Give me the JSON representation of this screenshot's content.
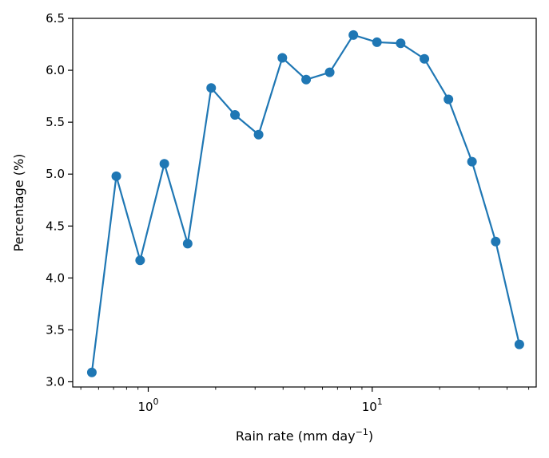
{
  "chart_data": {
    "type": "line",
    "xscale": "log",
    "xlabel": {
      "base": "Rain rate (mm day",
      "sup": "−1",
      "close": ")"
    },
    "ylabel": "Percentage (%)",
    "xlim": [
      0.46,
      54
    ],
    "ylim": [
      2.95,
      6.5
    ],
    "x_major_ticks": [
      {
        "value": 1,
        "base": "10",
        "exp": "0"
      },
      {
        "value": 10,
        "base": "10",
        "exp": "1"
      }
    ],
    "y_ticks": [
      {
        "value": 3.0,
        "label": "3.0"
      },
      {
        "value": 3.5,
        "label": "3.5"
      },
      {
        "value": 4.0,
        "label": "4.0"
      },
      {
        "value": 4.5,
        "label": "4.5"
      },
      {
        "value": 5.0,
        "label": "5.0"
      },
      {
        "value": 5.5,
        "label": "5.5"
      },
      {
        "value": 6.0,
        "label": "6.0"
      },
      {
        "value": 6.5,
        "label": "6.5"
      }
    ],
    "series": [
      {
        "color": "#1f77b4",
        "x": [
          0.56,
          0.72,
          0.92,
          1.18,
          1.5,
          1.91,
          2.44,
          3.11,
          3.97,
          5.07,
          6.46,
          8.24,
          10.5,
          13.4,
          17.1,
          21.9,
          27.9,
          35.6,
          45.4
        ],
        "y": [
          3.09,
          4.98,
          4.17,
          5.1,
          4.33,
          5.83,
          5.57,
          5.38,
          6.12,
          5.91,
          5.98,
          6.34,
          6.27,
          6.26,
          6.11,
          5.72,
          5.12,
          4.35,
          3.36
        ]
      }
    ]
  }
}
